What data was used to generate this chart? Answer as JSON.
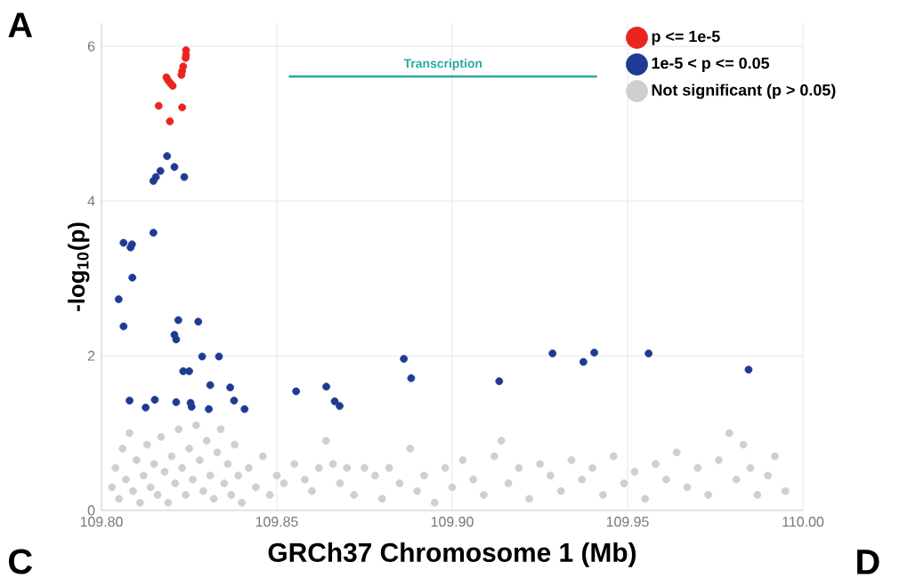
{
  "chart_data": {
    "type": "scatter",
    "xlabel": "GRCh37 Chromosome 1 (Mb)",
    "ylabel": "-log$_{10}$(p)",
    "xlim": [
      109.8,
      110.0
    ],
    "ylim": [
      0,
      6.3
    ],
    "xticks": [
      {
        "value": 109.8,
        "label": "109.80"
      },
      {
        "value": 109.85,
        "label": "109.85"
      },
      {
        "value": 109.9,
        "label": "109.90"
      },
      {
        "value": 109.95,
        "label": "109.95"
      },
      {
        "value": 110.0,
        "label": "110.00"
      }
    ],
    "yticks": [
      0,
      2,
      4,
      6
    ],
    "grid": true,
    "legend": "top right",
    "annotations": [
      "A",
      "C",
      "D",
      {
        "text": "Transcription",
        "x": 109.8974,
        "y": 5.61
      }
    ],
    "series": [
      {
        "name": "p <= 1e-5",
        "marker": "circle",
        "color": "#e8251f",
        "x": [
          109.8241,
          109.8241,
          109.824,
          109.8233,
          109.823,
          109.8228,
          109.8185,
          109.819,
          109.8197,
          109.8203,
          109.8163,
          109.823,
          109.8195
        ],
        "values": [
          5.95,
          5.89,
          5.85,
          5.74,
          5.68,
          5.63,
          5.6,
          5.56,
          5.52,
          5.49,
          5.23,
          5.21,
          5.03
        ]
      },
      {
        "name": "1e-5 < p <= 0.05",
        "marker": "circle",
        "color": "#1f3a93",
        "x": [
          109.8187,
          109.8168,
          109.8208,
          109.8155,
          109.8236,
          109.8148,
          109.8148,
          109.8063,
          109.8087,
          109.8083,
          109.8088,
          109.8049,
          109.8063,
          109.8219,
          109.8276,
          109.8208,
          109.8213,
          109.8287,
          109.8335,
          109.8233,
          109.825,
          109.831,
          109.8367,
          109.808,
          109.8152,
          109.8126,
          109.8213,
          109.8254,
          109.8257,
          109.8306,
          109.8378,
          109.8408,
          109.8555,
          109.8641,
          109.8665,
          109.8679,
          109.8862,
          109.8883,
          109.9134,
          109.9286,
          109.9374,
          109.9405,
          109.956,
          109.9845
        ],
        "values": [
          4.58,
          4.39,
          4.44,
          4.31,
          4.31,
          4.26,
          3.59,
          3.46,
          3.44,
          3.4,
          3.01,
          2.73,
          2.38,
          2.46,
          2.44,
          2.27,
          2.21,
          1.99,
          1.99,
          1.8,
          1.8,
          1.62,
          1.59,
          1.42,
          1.43,
          1.33,
          1.4,
          1.39,
          1.34,
          1.31,
          1.42,
          1.31,
          1.54,
          1.6,
          1.41,
          1.35,
          1.96,
          1.71,
          1.67,
          2.03,
          1.92,
          2.04,
          2.03,
          1.82
        ]
      },
      {
        "name": "Not significant (p > 0.05)",
        "marker": "circle",
        "color": "#cfcfcf",
        "x": [
          109.803,
          109.804,
          109.805,
          109.806,
          109.807,
          109.808,
          109.809,
          109.81,
          109.811,
          109.812,
          109.813,
          109.814,
          109.815,
          109.816,
          109.817,
          109.818,
          109.819,
          109.82,
          109.821,
          109.822,
          109.823,
          109.824,
          109.825,
          109.826,
          109.827,
          109.828,
          109.829,
          109.83,
          109.831,
          109.832,
          109.833,
          109.834,
          109.835,
          109.836,
          109.837,
          109.838,
          109.839,
          109.84,
          109.842,
          109.844,
          109.846,
          109.848,
          109.85,
          109.852,
          109.855,
          109.858,
          109.86,
          109.862,
          109.864,
          109.866,
          109.868,
          109.87,
          109.872,
          109.875,
          109.878,
          109.88,
          109.882,
          109.885,
          109.888,
          109.89,
          109.892,
          109.895,
          109.898,
          109.9,
          109.903,
          109.906,
          109.909,
          109.912,
          109.914,
          109.916,
          109.919,
          109.922,
          109.925,
          109.928,
          109.931,
          109.934,
          109.937,
          109.94,
          109.943,
          109.946,
          109.949,
          109.952,
          109.955,
          109.958,
          109.961,
          109.964,
          109.967,
          109.97,
          109.973,
          109.976,
          109.979,
          109.981,
          109.983,
          109.985,
          109.987,
          109.99,
          109.992,
          109.995
        ],
        "values": [
          0.3,
          0.55,
          0.15,
          0.8,
          0.4,
          1.0,
          0.25,
          0.65,
          0.1,
          0.45,
          0.85,
          0.3,
          0.6,
          0.2,
          0.95,
          0.5,
          0.1,
          0.7,
          0.35,
          1.05,
          0.55,
          0.2,
          0.8,
          0.4,
          1.1,
          0.65,
          0.25,
          0.9,
          0.45,
          0.15,
          0.75,
          1.05,
          0.35,
          0.6,
          0.2,
          0.85,
          0.45,
          0.1,
          0.55,
          0.3,
          0.7,
          0.2,
          0.45,
          0.35,
          0.6,
          0.4,
          0.25,
          0.55,
          0.9,
          0.6,
          0.35,
          0.55,
          0.2,
          0.55,
          0.45,
          0.15,
          0.55,
          0.35,
          0.8,
          0.25,
          0.45,
          0.1,
          0.55,
          0.3,
          0.65,
          0.4,
          0.2,
          0.7,
          0.9,
          0.35,
          0.55,
          0.15,
          0.6,
          0.45,
          0.25,
          0.65,
          0.4,
          0.55,
          0.2,
          0.7,
          0.35,
          0.5,
          0.15,
          0.6,
          0.4,
          0.75,
          0.3,
          0.55,
          0.2,
          0.65,
          1.0,
          0.4,
          0.85,
          0.55,
          0.2,
          0.45,
          0.7,
          0.25
        ]
      },
      {
        "type": "line",
        "marker": "none",
        "color": "#2ba89a",
        "x": [
          109.8534,
          109.9413
        ],
        "values": [
          5.61,
          5.61
        ]
      }
    ]
  }
}
